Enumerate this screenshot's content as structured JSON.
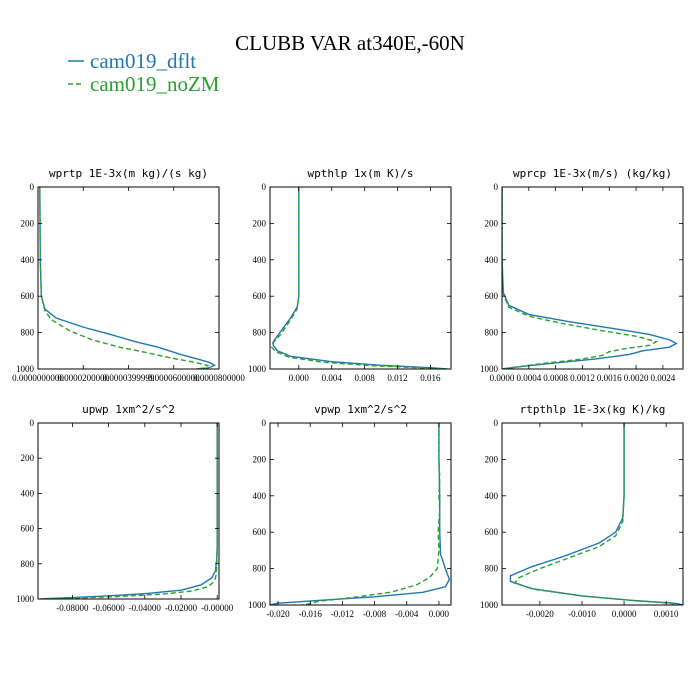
{
  "figure_title": "CLUBB VAR at340E,-60N",
  "legend": [
    {
      "label": "cam019_dflt",
      "color": "#1f77b4",
      "dash": "solid"
    },
    {
      "label": "cam019_noZM",
      "color": "#2ca02c",
      "dash": "dashed"
    }
  ],
  "chart_data": [
    {
      "type": "line",
      "title": "wprtp  1E-3x(m kg)/(s kg)",
      "xlim": [
        0.0,
        8e-05
      ],
      "ylim": [
        1000,
        0
      ],
      "x_tick_labels": [
        "0.0000000000",
        "0.0000200000",
        "0.0000399999",
        "0.0000600000",
        "0.0000800000"
      ],
      "x_ticks": [
        0.0,
        2e-05,
        4e-05,
        6e-05,
        8e-05
      ],
      "y_ticks": [
        0,
        200,
        400,
        600,
        800,
        1000
      ],
      "series": [
        {
          "name": "cam019_dflt",
          "points": [
            [
              8e-07,
              0
            ],
            [
              9e-07,
              200
            ],
            [
              1e-06,
              400
            ],
            [
              1.5e-06,
              600
            ],
            [
              3e-06,
              670
            ],
            [
              8e-06,
              720
            ],
            [
              2e-05,
              770
            ],
            [
              3.2e-05,
              810
            ],
            [
              4.3e-05,
              850
            ],
            [
              5.3e-05,
              880
            ],
            [
              6.3e-05,
              920
            ],
            [
              7.2e-05,
              950
            ],
            [
              7.6e-05,
              965
            ],
            [
              7.8e-05,
              980
            ],
            [
              7.5e-05,
              995
            ],
            [
              7e-05,
              1000
            ]
          ]
        },
        {
          "name": "cam019_noZM",
          "points": [
            [
              8e-07,
              0
            ],
            [
              9e-07,
              200
            ],
            [
              1e-06,
              400
            ],
            [
              1.5e-06,
              600
            ],
            [
              3e-06,
              680
            ],
            [
              6e-06,
              730
            ],
            [
              1.4e-05,
              790
            ],
            [
              2.4e-05,
              840
            ],
            [
              3.6e-05,
              880
            ],
            [
              4.8e-05,
              910
            ],
            [
              5.9e-05,
              940
            ],
            [
              6.8e-05,
              960
            ],
            [
              7.5e-05,
              980
            ],
            [
              7.3e-05,
              995
            ],
            [
              7e-05,
              1000
            ]
          ]
        }
      ]
    },
    {
      "type": "line",
      "title": "wpthlp  1x(m K)/s",
      "xlim": [
        -0.0035,
        0.0185
      ],
      "ylim": [
        1000,
        0
      ],
      "x_tick_labels": [
        "0.000",
        "0.004",
        "0.008",
        "0.012",
        "0.016"
      ],
      "x_ticks": [
        0.0,
        0.004,
        0.008,
        0.012,
        0.016
      ],
      "y_ticks": [
        0,
        200,
        400,
        600,
        800,
        1000
      ],
      "series": [
        {
          "name": "cam019_dflt",
          "points": [
            [
              0.0,
              0
            ],
            [
              0.0,
              200
            ],
            [
              0.0,
              400
            ],
            [
              0.0,
              600
            ],
            [
              -0.0002,
              660
            ],
            [
              -0.001,
              720
            ],
            [
              -0.0023,
              800
            ],
            [
              -0.0031,
              850
            ],
            [
              -0.0031,
              870
            ],
            [
              -0.0026,
              900
            ],
            [
              -0.001,
              930
            ],
            [
              0.004,
              960
            ],
            [
              0.01,
              980
            ],
            [
              0.016,
              993
            ],
            [
              0.018,
              1000
            ]
          ]
        },
        {
          "name": "cam019_noZM",
          "points": [
            [
              0.0,
              0
            ],
            [
              0.0,
              200
            ],
            [
              0.0,
              400
            ],
            [
              0.0,
              600
            ],
            [
              -0.0002,
              670
            ],
            [
              -0.001,
              730
            ],
            [
              -0.0022,
              810
            ],
            [
              -0.0032,
              860
            ],
            [
              -0.0033,
              880
            ],
            [
              -0.0028,
              905
            ],
            [
              -0.0012,
              935
            ],
            [
              0.003,
              963
            ],
            [
              0.009,
              982
            ],
            [
              0.015,
              994
            ],
            [
              0.018,
              1000
            ]
          ]
        }
      ]
    },
    {
      "type": "line",
      "title": "wprcp  1E-3x(m/s) (kg/kg)",
      "xlim": [
        0.0,
        0.0027
      ],
      "ylim": [
        1000,
        0
      ],
      "x_tick_labels": [
        "0.0000",
        "0.0004",
        "0.0008",
        "0.0012",
        "0.0016",
        "0.0020",
        "0.0024"
      ],
      "x_ticks": [
        0.0,
        0.0004,
        0.0008,
        0.0012,
        0.0016,
        0.002,
        0.0024
      ],
      "y_ticks": [
        0,
        200,
        400,
        600,
        800,
        1000
      ],
      "series": [
        {
          "name": "cam019_dflt",
          "points": [
            [
              0.0,
              0
            ],
            [
              0.0,
              400
            ],
            [
              2e-05,
              580
            ],
            [
              0.0001,
              650
            ],
            [
              0.0004,
              700
            ],
            [
              0.001,
              740
            ],
            [
              0.0017,
              780
            ],
            [
              0.0022,
              810
            ],
            [
              0.0025,
              840
            ],
            [
              0.0026,
              860
            ],
            [
              0.0025,
              880
            ],
            [
              0.0021,
              900
            ],
            [
              0.0019,
              920
            ],
            [
              0.0014,
              945
            ],
            [
              0.0007,
              970
            ],
            [
              0.0002,
              990
            ],
            [
              0.0,
              1000
            ]
          ]
        },
        {
          "name": "cam019_noZM",
          "points": [
            [
              0.0,
              0
            ],
            [
              0.0,
              400
            ],
            [
              2e-05,
              590
            ],
            [
              0.0001,
              660
            ],
            [
              0.0004,
              710
            ],
            [
              0.0009,
              750
            ],
            [
              0.0015,
              790
            ],
            [
              0.002,
              820
            ],
            [
              0.0023,
              850
            ],
            [
              0.0022,
              870
            ],
            [
              0.0018,
              890
            ],
            [
              0.0016,
              905
            ],
            [
              0.0015,
              925
            ],
            [
              0.0012,
              945
            ],
            [
              0.0006,
              970
            ],
            [
              0.0002,
              990
            ],
            [
              0.0,
              1000
            ]
          ]
        }
      ]
    },
    {
      "type": "line",
      "title": "upwp  1xm^2/s^2",
      "xlim": [
        -0.099,
        0.001
      ],
      "ylim": [
        1000,
        0
      ],
      "x_tick_labels": [
        "-0.08000",
        "-0.06000",
        "-0.04000",
        "-0.02000",
        "-0.00000"
      ],
      "x_ticks": [
        -0.08,
        -0.06,
        -0.04,
        -0.02,
        0.0
      ],
      "y_ticks": [
        0,
        200,
        400,
        600,
        800,
        1000
      ],
      "series": [
        {
          "name": "cam019_dflt",
          "points": [
            [
              0.0,
              0
            ],
            [
              0.0,
              400
            ],
            [
              0.0,
              700
            ],
            [
              -0.0003,
              780
            ],
            [
              -0.001,
              840
            ],
            [
              -0.003,
              880
            ],
            [
              -0.009,
              920
            ],
            [
              -0.02,
              950
            ],
            [
              -0.04,
              970
            ],
            [
              -0.065,
              985
            ],
            [
              -0.085,
              994
            ],
            [
              -0.098,
              1000
            ]
          ]
        },
        {
          "name": "cam019_noZM",
          "points": [
            [
              0.0,
              0
            ],
            [
              0.0,
              400
            ],
            [
              0.0,
              700
            ],
            [
              -0.0002,
              800
            ],
            [
              -0.0005,
              860
            ],
            [
              -0.0015,
              900
            ],
            [
              -0.005,
              930
            ],
            [
              -0.014,
              955
            ],
            [
              -0.03,
              972
            ],
            [
              -0.055,
              986
            ],
            [
              -0.08,
              995
            ],
            [
              -0.094,
              1000
            ]
          ]
        }
      ]
    },
    {
      "type": "line",
      "title": "vpwp  1xm^2/s^2",
      "xlim": [
        -0.021,
        0.0015
      ],
      "ylim": [
        1000,
        0
      ],
      "x_tick_labels": [
        "-0.020",
        "-0.016",
        "-0.012",
        "-0.008",
        "-0.004",
        "0.000"
      ],
      "x_ticks": [
        -0.02,
        -0.016,
        -0.012,
        -0.008,
        -0.004,
        0.0
      ],
      "y_ticks": [
        0,
        200,
        400,
        600,
        800,
        1000
      ],
      "series": [
        {
          "name": "cam019_dflt",
          "points": [
            [
              0.0,
              0
            ],
            [
              0.0,
              200
            ],
            [
              0.0001,
              400
            ],
            [
              0.0001,
              600
            ],
            [
              0.0002,
              720
            ],
            [
              0.0008,
              800
            ],
            [
              0.0013,
              860
            ],
            [
              0.0008,
              900
            ],
            [
              -0.002,
              930
            ],
            [
              -0.008,
              955
            ],
            [
              -0.015,
              975
            ],
            [
              -0.02,
              990
            ],
            [
              -0.021,
              1000
            ]
          ]
        },
        {
          "name": "cam019_noZM",
          "points": [
            [
              0.0,
              0
            ],
            [
              0.0,
              200
            ],
            [
              0.0001,
              300
            ],
            [
              0.0,
              400
            ],
            [
              0.0001,
              480
            ],
            [
              -0.0001,
              600
            ],
            [
              0.0,
              700
            ],
            [
              -0.0002,
              800
            ],
            [
              -0.0012,
              850
            ],
            [
              -0.0028,
              890
            ],
            [
              -0.006,
              930
            ],
            [
              -0.011,
              960
            ],
            [
              -0.015,
              980
            ],
            [
              -0.016,
              993
            ],
            [
              -0.017,
              1000
            ]
          ]
        }
      ]
    },
    {
      "type": "line",
      "title": "rtpthlp  1E-3x(kg K)/kg",
      "xlim": [
        -0.0029,
        0.0014
      ],
      "ylim": [
        1000,
        0
      ],
      "x_tick_labels": [
        "-0.0020",
        "-0.0010",
        "0.0000",
        "0.0010"
      ],
      "x_ticks": [
        -0.002,
        -0.001,
        0.0,
        0.001
      ],
      "y_ticks": [
        0,
        200,
        400,
        600,
        800,
        1000
      ],
      "series": [
        {
          "name": "cam019_dflt",
          "points": [
            [
              0.0,
              0
            ],
            [
              0.0,
              200
            ],
            [
              0.0,
              400
            ],
            [
              -3e-05,
              520
            ],
            [
              -0.0002,
              600
            ],
            [
              -0.0006,
              660
            ],
            [
              -0.0014,
              730
            ],
            [
              -0.0022,
              790
            ],
            [
              -0.0027,
              840
            ],
            [
              -0.0027,
              870
            ],
            [
              -0.0022,
              910
            ],
            [
              -0.001,
              950
            ],
            [
              0.0002,
              975
            ],
            [
              0.0012,
              990
            ],
            [
              0.0014,
              1000
            ]
          ]
        },
        {
          "name": "cam019_noZM",
          "points": [
            [
              0.0,
              0
            ],
            [
              0.0,
              200
            ],
            [
              0.0,
              400
            ],
            [
              -3e-05,
              540
            ],
            [
              -0.0002,
              620
            ],
            [
              -0.0006,
              680
            ],
            [
              -0.0013,
              740
            ],
            [
              -0.002,
              800
            ],
            [
              -0.0025,
              850
            ],
            [
              -0.0026,
              880
            ],
            [
              -0.0021,
              915
            ],
            [
              -0.001,
              950
            ],
            [
              0.0002,
              975
            ],
            [
              0.0011,
              990
            ],
            [
              0.0013,
              1000
            ]
          ]
        }
      ]
    }
  ]
}
